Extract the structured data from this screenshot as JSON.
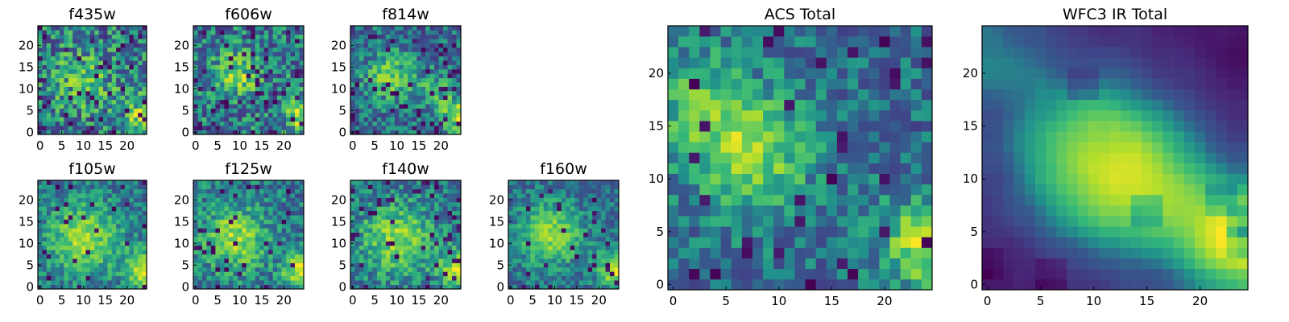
{
  "chart_data": [
    {
      "type": "heatmap",
      "title": "f435w",
      "size": 25,
      "xticks": [
        0,
        5,
        10,
        15,
        20
      ],
      "yticks": [
        0,
        5,
        10,
        15,
        20
      ],
      "colormap": "viridis",
      "seed": 11,
      "noise": 0.55,
      "spot_frac": 0.07,
      "blobs": [
        [
          24,
          4,
          3,
          0.4
        ],
        [
          10,
          12,
          5,
          0.25
        ]
      ]
    },
    {
      "type": "heatmap",
      "title": "f606w",
      "size": 25,
      "xticks": [
        0,
        5,
        10,
        15,
        20
      ],
      "yticks": [
        0,
        5,
        10,
        15,
        20
      ],
      "colormap": "viridis",
      "seed": 23,
      "noise": 0.5,
      "spot_frac": 0.08,
      "blobs": [
        [
          24,
          4,
          3,
          0.45
        ],
        [
          9,
          13,
          4,
          0.35
        ]
      ]
    },
    {
      "type": "heatmap",
      "title": "f814w",
      "size": 25,
      "xticks": [
        0,
        5,
        10,
        15,
        20
      ],
      "yticks": [
        0,
        5,
        10,
        15,
        20
      ],
      "colormap": "viridis",
      "seed": 37,
      "noise": 0.45,
      "spot_frac": 0.07,
      "blobs": [
        [
          24,
          4,
          3,
          0.5
        ],
        [
          8,
          13,
          4,
          0.4
        ],
        [
          18,
          10,
          3,
          0.3
        ]
      ]
    },
    {
      "type": "heatmap",
      "title": "f105w",
      "size": 25,
      "xticks": [
        0,
        5,
        10,
        15,
        20
      ],
      "yticks": [
        0,
        5,
        10,
        15,
        20
      ],
      "colormap": "viridis",
      "seed": 41,
      "noise": 0.3,
      "spot_frac": 0.05,
      "blobs": [
        [
          24,
          4,
          3,
          0.5
        ],
        [
          10,
          11,
          6,
          0.4
        ]
      ]
    },
    {
      "type": "heatmap",
      "title": "f125w",
      "size": 25,
      "xticks": [
        0,
        5,
        10,
        15,
        20
      ],
      "yticks": [
        0,
        5,
        10,
        15,
        20
      ],
      "colormap": "viridis",
      "seed": 53,
      "noise": 0.35,
      "spot_frac": 0.06,
      "blobs": [
        [
          24,
          4,
          3,
          0.5
        ],
        [
          9,
          11,
          5,
          0.4
        ]
      ]
    },
    {
      "type": "heatmap",
      "title": "f140w",
      "size": 25,
      "xticks": [
        0,
        5,
        10,
        15,
        20
      ],
      "yticks": [
        0,
        5,
        10,
        15,
        20
      ],
      "colormap": "viridis",
      "seed": 67,
      "noise": 0.35,
      "spot_frac": 0.06,
      "blobs": [
        [
          24,
          4,
          3,
          0.5
        ],
        [
          10,
          11,
          6,
          0.4
        ]
      ]
    },
    {
      "type": "heatmap",
      "title": "f160w",
      "size": 25,
      "xticks": [
        0,
        5,
        10,
        15,
        20
      ],
      "yticks": [
        0,
        5,
        10,
        15,
        20
      ],
      "colormap": "viridis",
      "seed": 79,
      "noise": 0.3,
      "spot_frac": 0.05,
      "blobs": [
        [
          24,
          4,
          3,
          0.55
        ],
        [
          9,
          12,
          5,
          0.45
        ]
      ]
    },
    {
      "type": "heatmap",
      "title": "ACS Total",
      "size": 25,
      "xticks": [
        0,
        5,
        10,
        15,
        20
      ],
      "yticks": [
        0,
        5,
        10,
        15,
        20
      ],
      "colormap": "viridis",
      "seed": 97,
      "noise": 0.35,
      "spot_frac": 0.05,
      "blobs": [
        [
          24,
          4,
          3,
          0.55
        ],
        [
          8,
          12,
          4,
          0.4
        ],
        [
          3,
          17,
          4,
          0.3
        ]
      ]
    },
    {
      "type": "heatmap",
      "title": "WFC3 IR Total",
      "size": 25,
      "xticks": [
        0,
        5,
        10,
        15,
        20
      ],
      "yticks": [
        0,
        5,
        10,
        15,
        20
      ],
      "colormap": "viridis",
      "seed": 113,
      "noise": 0.1,
      "spot_frac": 0.015,
      "blobs": [
        [
          24,
          4,
          3.5,
          0.6
        ],
        [
          10,
          12,
          6,
          0.5
        ],
        [
          17,
          8,
          5,
          0.3
        ],
        [
          0,
          22,
          4,
          0.25
        ]
      ]
    }
  ]
}
